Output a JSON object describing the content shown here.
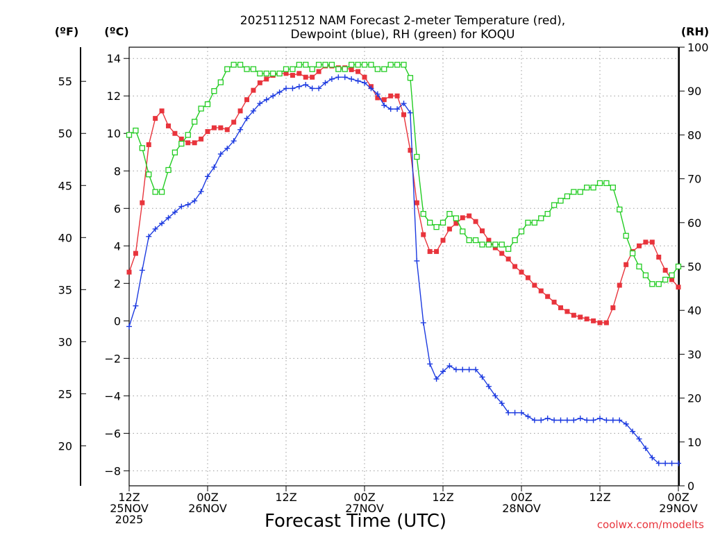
{
  "chart_data": {
    "type": "line",
    "title": [
      "2025112512 NAM Forecast 2-meter Temperature (red),",
      "Dewpoint (blue), RH (green) for KOQU"
    ],
    "xlabel": "Forecast Time (UTC)",
    "credit": "coolwx.com/modelts",
    "units": {
      "fahrenheit": "(ºF)",
      "celsius": "(ºC)",
      "rh": "(RH)"
    },
    "x_hours_range": [
      0,
      84
    ],
    "x_ticks": [
      {
        "hour": 0,
        "lines": [
          "12Z",
          "25NOV",
          "2025"
        ]
      },
      {
        "hour": 12,
        "lines": [
          "00Z",
          "26NOV"
        ]
      },
      {
        "hour": 24,
        "lines": [
          "12Z"
        ]
      },
      {
        "hour": 36,
        "lines": [
          "00Z",
          "27NOV"
        ]
      },
      {
        "hour": 48,
        "lines": [
          "12Z"
        ]
      },
      {
        "hour": 60,
        "lines": [
          "00Z",
          "28NOV"
        ]
      },
      {
        "hour": 72,
        "lines": [
          "12Z"
        ]
      },
      {
        "hour": 84,
        "lines": [
          "00Z",
          "29NOV"
        ]
      }
    ],
    "celsius_axis": {
      "ylim": [
        -8.8,
        14.6
      ],
      "ticks": [
        -8,
        -6,
        -4,
        -2,
        0,
        2,
        4,
        6,
        8,
        10,
        12,
        14
      ]
    },
    "fahrenheit_ticks": [
      20,
      25,
      30,
      35,
      40,
      45,
      50,
      55
    ],
    "rh_axis": {
      "ylim": [
        0,
        100
      ],
      "ticks": [
        0,
        10,
        20,
        30,
        40,
        50,
        60,
        70,
        80,
        90,
        100
      ]
    },
    "series": [
      {
        "name": "Temperature",
        "axis": "celsius",
        "color": "#e8343c",
        "marker": "square-filled",
        "hours": [
          0,
          1,
          2,
          3,
          4,
          5,
          6,
          7,
          8,
          9,
          10,
          11,
          12,
          13,
          14,
          15,
          16,
          17,
          18,
          19,
          20,
          21,
          22,
          23,
          24,
          25,
          26,
          27,
          28,
          29,
          30,
          31,
          32,
          33,
          34,
          35,
          36,
          37,
          38,
          39,
          40,
          41,
          42,
          43,
          44,
          45,
          46,
          47,
          48,
          49,
          50,
          51,
          52,
          53,
          54,
          55,
          56,
          57,
          58,
          59,
          60,
          61,
          62,
          63,
          64,
          65,
          66,
          67,
          68,
          69,
          70,
          71,
          72,
          73,
          74,
          75,
          76,
          77,
          78,
          79,
          80,
          81,
          82,
          83,
          84
        ],
        "values": [
          2.6,
          3.6,
          6.3,
          9.4,
          10.8,
          11.2,
          10.4,
          10.0,
          9.7,
          9.5,
          9.5,
          9.7,
          10.1,
          10.3,
          10.3,
          10.2,
          10.6,
          11.2,
          11.8,
          12.3,
          12.7,
          12.9,
          13.1,
          13.2,
          13.2,
          13.1,
          13.2,
          13.0,
          13.0,
          13.3,
          13.6,
          13.6,
          13.5,
          13.5,
          13.4,
          13.3,
          13.0,
          12.5,
          11.9,
          11.8,
          12.0,
          12.0,
          11.0,
          9.1,
          6.3,
          4.6,
          3.7,
          3.7,
          4.3,
          4.9,
          5.2,
          5.5,
          5.6,
          5.3,
          4.8,
          4.3,
          3.9,
          3.6,
          3.3,
          2.9,
          2.6,
          2.3,
          1.9,
          1.6,
          1.3,
          1.0,
          0.7,
          0.5,
          0.3,
          0.2,
          0.1,
          0.0,
          -0.1,
          -0.1,
          0.7,
          1.9,
          3.0,
          3.7,
          4.0,
          4.2,
          4.2,
          3.4,
          2.7,
          2.2,
          1.8
        ]
      },
      {
        "name": "Dewpoint",
        "axis": "celsius",
        "color": "#1c3ae0",
        "marker": "plus",
        "hours": [
          0,
          1,
          2,
          3,
          4,
          5,
          6,
          7,
          8,
          9,
          10,
          11,
          12,
          13,
          14,
          15,
          16,
          17,
          18,
          19,
          20,
          21,
          22,
          23,
          24,
          25,
          26,
          27,
          28,
          29,
          30,
          31,
          32,
          33,
          34,
          35,
          36,
          37,
          38,
          39,
          40,
          41,
          42,
          43,
          44,
          45,
          46,
          47,
          48,
          49,
          50,
          51,
          52,
          53,
          54,
          55,
          56,
          57,
          58,
          59,
          60,
          61,
          62,
          63,
          64,
          65,
          66,
          67,
          68,
          69,
          70,
          71,
          72,
          73,
          74,
          75,
          76,
          77,
          78,
          79,
          80,
          81,
          82,
          83,
          84
        ],
        "values": [
          -0.3,
          0.8,
          2.7,
          4.5,
          4.9,
          5.2,
          5.5,
          5.8,
          6.1,
          6.2,
          6.4,
          6.9,
          7.7,
          8.2,
          8.9,
          9.2,
          9.6,
          10.2,
          10.8,
          11.2,
          11.6,
          11.8,
          12.0,
          12.2,
          12.4,
          12.4,
          12.5,
          12.6,
          12.4,
          12.4,
          12.7,
          12.9,
          13.0,
          13.0,
          12.9,
          12.8,
          12.7,
          12.4,
          12.1,
          11.5,
          11.3,
          11.3,
          11.6,
          11.1,
          3.2,
          -0.1,
          -2.3,
          -3.1,
          -2.7,
          -2.4,
          -2.6,
          -2.6,
          -2.6,
          -2.6,
          -3.0,
          -3.5,
          -4.0,
          -4.4,
          -4.9,
          -4.9,
          -4.9,
          -5.1,
          -5.3,
          -5.3,
          -5.2,
          -5.3,
          -5.3,
          -5.3,
          -5.3,
          -5.2,
          -5.3,
          -5.3,
          -5.2,
          -5.3,
          -5.3,
          -5.3,
          -5.5,
          -5.9,
          -6.3,
          -6.8,
          -7.3,
          -7.6,
          -7.6,
          -7.6,
          -7.6
        ]
      },
      {
        "name": "RH",
        "axis": "rh",
        "color": "#22cc22",
        "marker": "square-open",
        "hours": [
          0,
          1,
          2,
          3,
          4,
          5,
          6,
          7,
          8,
          9,
          10,
          11,
          12,
          13,
          14,
          15,
          16,
          17,
          18,
          19,
          20,
          21,
          22,
          23,
          24,
          25,
          26,
          27,
          28,
          29,
          30,
          31,
          32,
          33,
          34,
          35,
          36,
          37,
          38,
          39,
          40,
          41,
          42,
          43,
          44,
          45,
          46,
          47,
          48,
          49,
          50,
          51,
          52,
          53,
          54,
          55,
          56,
          57,
          58,
          59,
          60,
          61,
          62,
          63,
          64,
          65,
          66,
          67,
          68,
          69,
          70,
          71,
          72,
          73,
          74,
          75,
          76,
          77,
          78,
          79,
          80,
          81,
          82,
          83,
          84
        ],
        "values": [
          80,
          81,
          77,
          71,
          67,
          67,
          72,
          76,
          78,
          80,
          83,
          86,
          87,
          90,
          92,
          95,
          96,
          96,
          95,
          95,
          94,
          94,
          94,
          94,
          95,
          95,
          96,
          96,
          95,
          96,
          96,
          96,
          95,
          95,
          96,
          96,
          96,
          96,
          95,
          95,
          96,
          96,
          96,
          93,
          75,
          62,
          60,
          59,
          60,
          62,
          61,
          58,
          56,
          56,
          55,
          55,
          55,
          55,
          54,
          56,
          58,
          60,
          60,
          61,
          62,
          64,
          65,
          66,
          67,
          67,
          68,
          68,
          69,
          69,
          68,
          63,
          57,
          53,
          50,
          48,
          46,
          46,
          47,
          48,
          50
        ]
      }
    ]
  }
}
